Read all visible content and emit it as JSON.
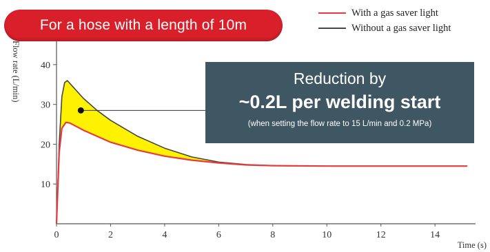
{
  "banner": {
    "text": "For a hose with a length of 10m"
  },
  "legend": [
    {
      "label": "With a gas saver light",
      "color": "#e8393f"
    },
    {
      "label": "Without a gas saver light",
      "color": "#444444"
    }
  ],
  "callout": {
    "line1": "Reduction by",
    "line2": "~0.2L per welding start",
    "line3": "(when setting the flow rate to 15 L/min and 0.2 MPa)"
  },
  "colors": {
    "fill_between": "#fff200",
    "callout_bg": "#3f5663",
    "banner_bg": "#d9202a"
  },
  "chart_data": {
    "type": "line",
    "title": "",
    "xlabel": "Time (s)",
    "ylabel": "Flow rate (L/min)",
    "xlim": [
      0,
      15.5
    ],
    "ylim": [
      0,
      45
    ],
    "x_ticks": [
      0,
      2,
      4,
      6,
      8,
      10,
      12,
      14
    ],
    "y_ticks": [
      10,
      20,
      30,
      40
    ],
    "grid": false,
    "legend_position": "top-right",
    "fill_between_series": true,
    "series": [
      {
        "name": "With a gas saver light",
        "color": "#e8393f",
        "x": [
          0,
          0.1,
          0.2,
          0.35,
          0.5,
          1,
          1.5,
          2,
          3,
          4,
          5,
          6,
          7,
          8,
          10,
          12,
          14,
          15.2
        ],
        "y": [
          0,
          18,
          24,
          25.5,
          25.3,
          23.5,
          22,
          20.5,
          18.5,
          17,
          16,
          15.3,
          14.8,
          14.6,
          14.5,
          14.5,
          14.5,
          14.5
        ]
      },
      {
        "name": "Without a gas saver light",
        "color": "#444444",
        "x": [
          0,
          0.1,
          0.2,
          0.3,
          0.4,
          0.6,
          1,
          1.5,
          2,
          3,
          4,
          5,
          6,
          7,
          8
        ],
        "y": [
          0,
          20,
          32,
          35.5,
          36,
          34.5,
          31.5,
          28.5,
          26,
          22,
          19,
          16.8,
          15.5,
          14.9,
          14.6
        ]
      }
    ],
    "annotations": [
      {
        "x": 0.9,
        "y": 28.5,
        "marker": "dot",
        "links_to": "callout"
      }
    ]
  }
}
